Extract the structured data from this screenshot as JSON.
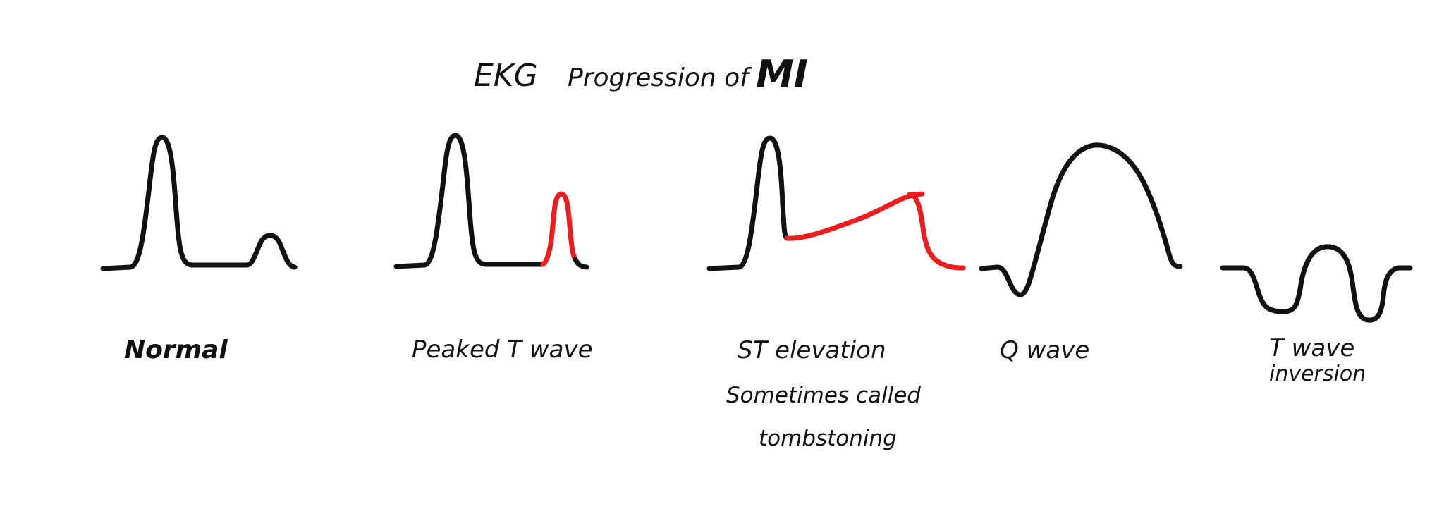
{
  "title": {
    "part1": "EKG",
    "part2": "Progression of",
    "part3": "MI"
  },
  "colors": {
    "ink": "#111111",
    "highlight": "#ee1c1c",
    "background": "#ffffff"
  },
  "stages": [
    {
      "label": "Normal"
    },
    {
      "label": "Peaked T wave"
    },
    {
      "label": "ST elevation",
      "note_line1": "Sometimes called",
      "note_line2": "tombstoning"
    },
    {
      "label": "Q wave"
    },
    {
      "label": "T wave",
      "label_line2": "inversion"
    }
  ]
}
